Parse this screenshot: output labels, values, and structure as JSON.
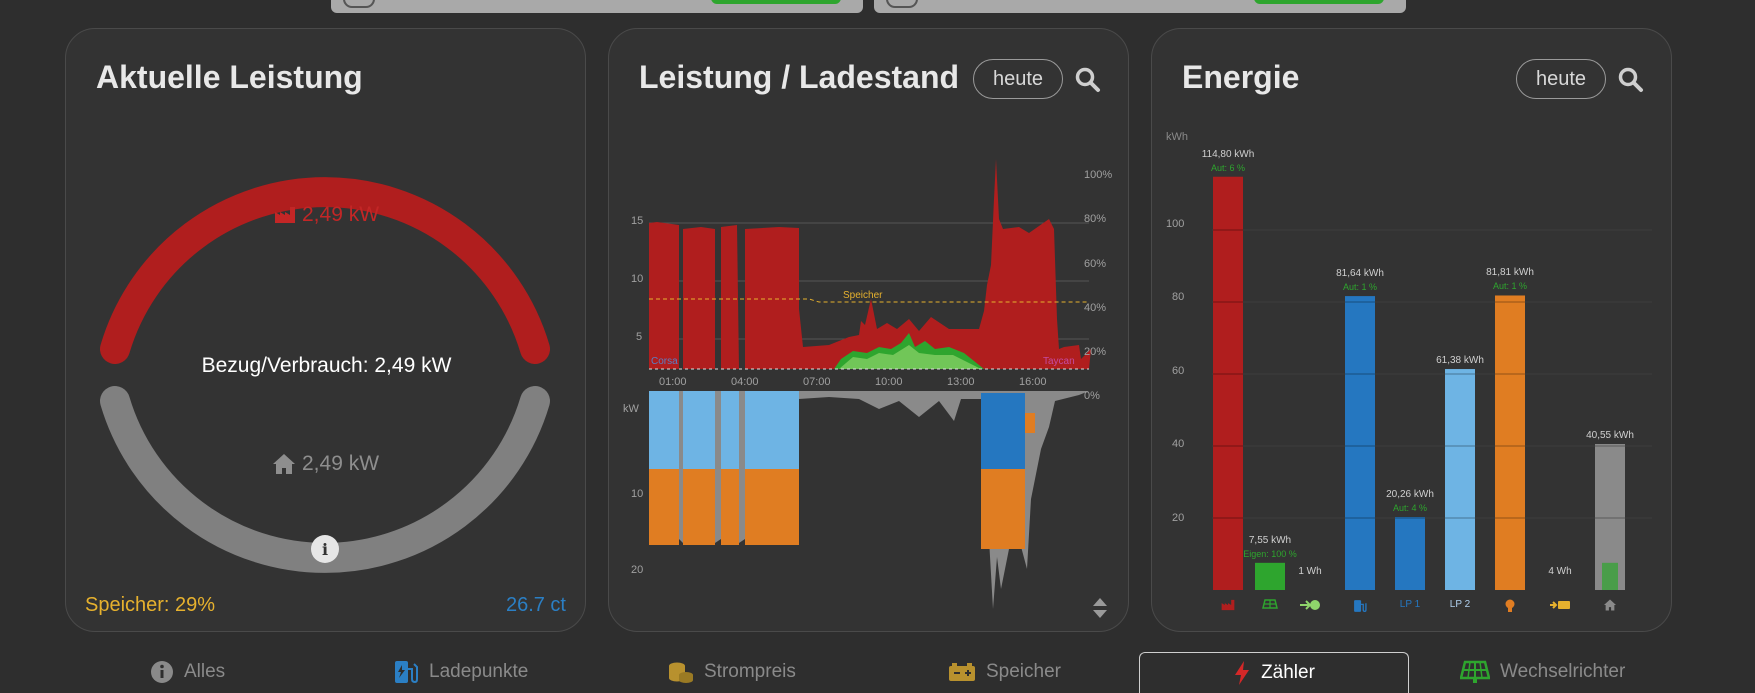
{
  "cards": {
    "leistung": {
      "title": "Aktuelle Leistung",
      "grid_value": "2,49 kW",
      "center_label": "Bezug/Verbrauch: 2,49 kW",
      "house_value": "2,49 kW",
      "speicher": "Speicher: 29%",
      "price": "26.7 ct",
      "colors": {
        "grid": "#b01e1e",
        "house": "#808080",
        "speicher": "#e6b12e",
        "price": "#2b7fc4"
      }
    },
    "chart": {
      "title": "Leistung / Ladestand",
      "period_button": "heute",
      "left_ticks_top": [
        "15",
        "10",
        "5"
      ],
      "left_ticks_bottom": [
        "10",
        "20"
      ],
      "kw_label": "kW",
      "right_ticks": [
        "100%",
        "80%",
        "60%",
        "40%",
        "20%",
        "0%"
      ],
      "time_ticks": [
        "01:00",
        "04:00",
        "07:00",
        "10:00",
        "13:00",
        "16:00"
      ],
      "speicher_label": "Speicher",
      "corsa_label": "Corsa",
      "taycan_label": "Taycan"
    },
    "energie": {
      "title": "Energie",
      "period_button": "heute",
      "unit": "kWh",
      "y_ticks": [
        "100",
        "80",
        "60",
        "40",
        "20"
      ],
      "bars": [
        {
          "label": "114,80 kWh",
          "sub": "Aut: 6 %",
          "value": 114.8,
          "color": "#b01e1e",
          "icon": "factory-icon"
        },
        {
          "label": "7,55 kWh",
          "sub": "Eigen: 100 %",
          "value": 7.55,
          "color": "#2ea52e",
          "icon": "solar-panel-icon"
        },
        {
          "label": "1 Wh",
          "sub": "",
          "value": 0,
          "color": "#8fd46b",
          "icon": "battery-in-icon"
        },
        {
          "label": "81,64 kWh",
          "sub": "Aut: 1 %",
          "value": 81.64,
          "color": "#2577c0",
          "icon": "charging-icon"
        },
        {
          "label": "20,26 kWh",
          "sub": "Aut: 4 %",
          "value": 20.26,
          "color": "#2577c0",
          "icon": "lp1-label"
        },
        {
          "label": "61,38 kWh",
          "sub": "",
          "value": 61.38,
          "color": "#6eb4e4",
          "icon": "lp2-label"
        },
        {
          "label": "81,81 kWh",
          "sub": "Aut: 1 %",
          "value": 81.81,
          "color": "#e07d22",
          "icon": "bulb-icon"
        },
        {
          "label": "4 Wh",
          "sub": "",
          "value": 0,
          "color": "#e6b12e",
          "icon": "battery-out-icon"
        },
        {
          "label": "40,55 kWh",
          "sub": "",
          "value": 40.55,
          "color": "#8a8a8a",
          "icon": "house-icon"
        }
      ],
      "lp1_text": "LP 1",
      "lp2_text": "LP 2"
    }
  },
  "tabs": [
    {
      "label": "Alles",
      "color": "#8a8a8a"
    },
    {
      "label": "Ladepunkte",
      "color": "#2b7fc4"
    },
    {
      "label": "Strompreis",
      "color": "#b8912e"
    },
    {
      "label": "Speicher",
      "color": "#b8912e"
    },
    {
      "label": "Zähler",
      "color": "#d42828"
    },
    {
      "label": "Wechselrichter",
      "color": "#2ea52e"
    }
  ]
}
